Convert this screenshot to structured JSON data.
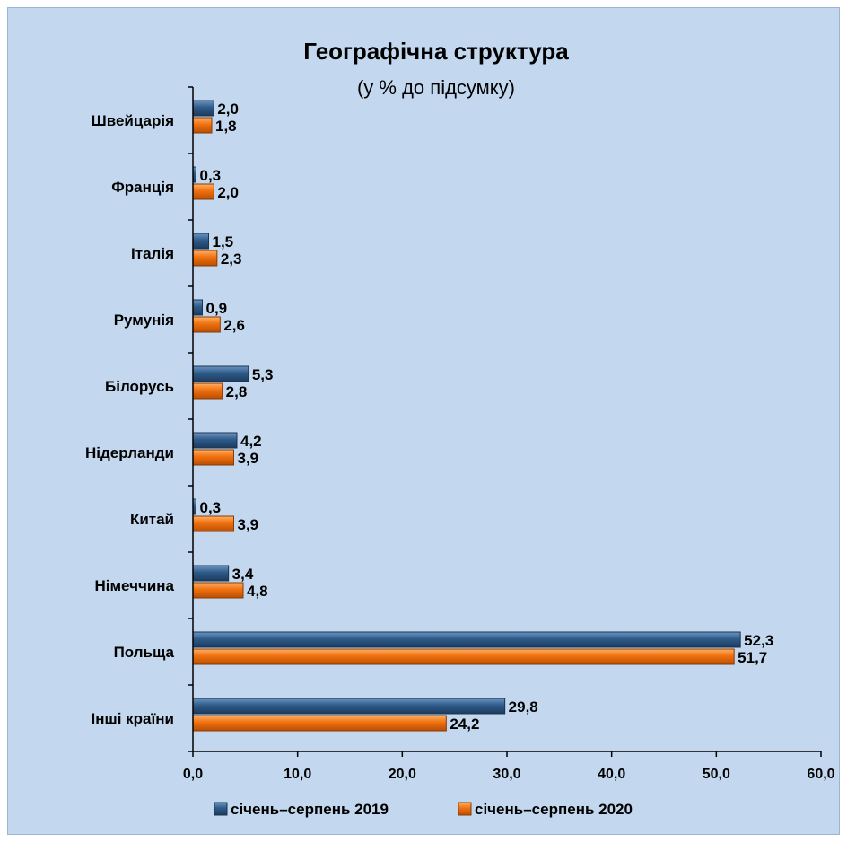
{
  "chart_data": {
    "type": "bar",
    "orientation": "horizontal",
    "title": "Географічна структура",
    "subtitle": "(у % до підсумку)",
    "categories": [
      "Швейцарія",
      "Франція",
      "Італія",
      "Румунія",
      "Білорусь",
      "Нідерланди",
      "Китай",
      "Німеччина",
      "Польща",
      "Інші країни"
    ],
    "series": [
      {
        "name": "січень–серпень 2019",
        "color": "#2f5b8a",
        "values": [
          2.0,
          0.3,
          1.5,
          0.9,
          5.3,
          4.2,
          0.3,
          3.4,
          52.3,
          29.8
        ],
        "labels": [
          "2,0",
          "0,3",
          "1,5",
          "0,9",
          "5,3",
          "4,2",
          "0,3",
          "3,4",
          "52,3",
          "29,8"
        ]
      },
      {
        "name": "січень–серпень 2020",
        "color": "#f0700e",
        "values": [
          1.8,
          2.0,
          2.3,
          2.6,
          2.8,
          3.9,
          3.9,
          4.8,
          51.7,
          24.2
        ],
        "labels": [
          "1,8",
          "2,0",
          "2,3",
          "2,6",
          "2,8",
          "3,9",
          "3,9",
          "4,8",
          "51,7",
          "24,2"
        ]
      }
    ],
    "xlim": [
      0,
      60
    ],
    "xticks": [
      "0,0",
      "10,0",
      "20,0",
      "30,0",
      "40,0",
      "50,0",
      "60,0"
    ],
    "grid": false,
    "legend_position": "bottom"
  }
}
